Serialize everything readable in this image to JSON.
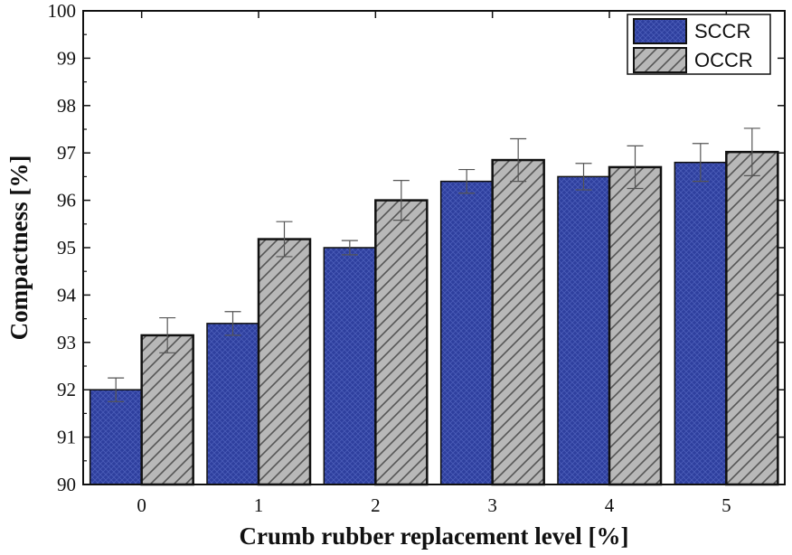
{
  "colors": {
    "sccr_fill": "#2e3f9e",
    "occr_fill": "#b8b8b8",
    "occr_hatch": "#555555",
    "bar_outline": "#111111",
    "error_bar": "#555555"
  },
  "chart_data": {
    "type": "bar",
    "title": "",
    "xlabel": "Crumb rubber replacement level [%]",
    "ylabel": "Compactness  [%]",
    "categories": [
      "0",
      "1",
      "2",
      "3",
      "4",
      "5"
    ],
    "ylim": [
      90,
      100
    ],
    "yticks": [
      "90",
      "91",
      "92",
      "93",
      "94",
      "95",
      "96",
      "97",
      "98",
      "99",
      "100"
    ],
    "legend_position": "top-right",
    "series": [
      {
        "name": "SCCR",
        "values": [
          92.0,
          93.4,
          95.0,
          96.4,
          96.5,
          96.8
        ],
        "errors": [
          0.25,
          0.25,
          0.15,
          0.25,
          0.28,
          0.4
        ]
      },
      {
        "name": "OCCR",
        "values": [
          93.15,
          95.18,
          96.0,
          96.85,
          96.7,
          97.02
        ],
        "errors": [
          0.37,
          0.37,
          0.42,
          0.45,
          0.45,
          0.5
        ]
      }
    ]
  }
}
